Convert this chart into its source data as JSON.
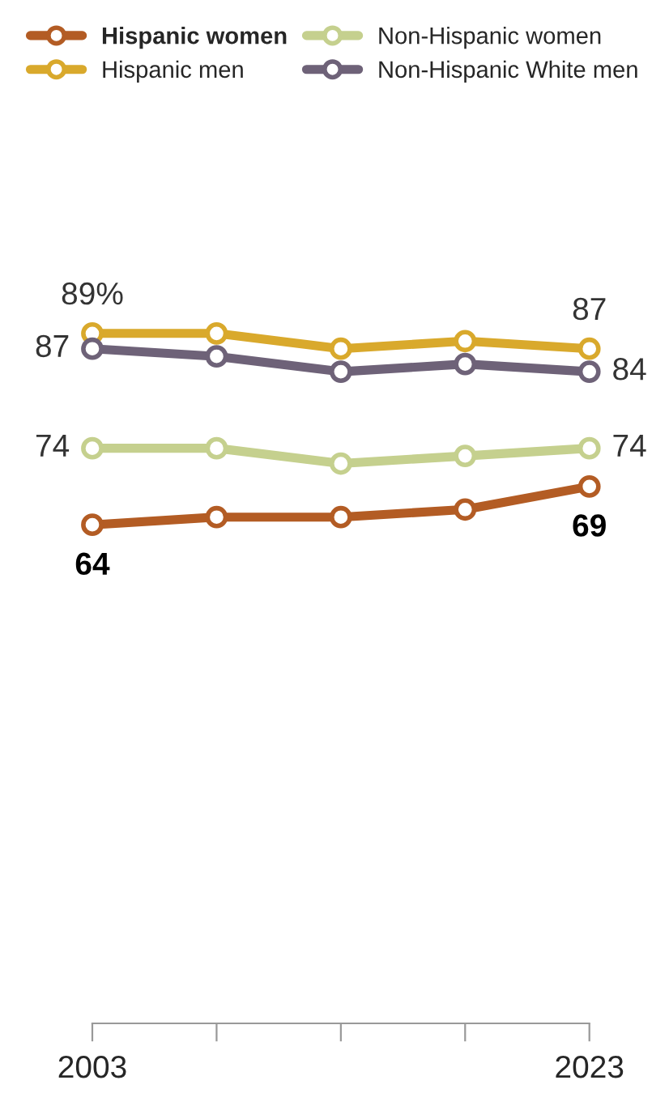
{
  "chart_data": {
    "type": "line",
    "x": [
      2003,
      2008,
      2013,
      2018,
      2023
    ],
    "series": [
      {
        "name": "Hispanic women",
        "color": "#b35c24",
        "values": [
          64,
          65,
          65,
          66,
          69
        ],
        "value_labels": [
          "64",
          null,
          null,
          null,
          "69"
        ]
      },
      {
        "name": "Non-Hispanic women",
        "color": "#c5d08e",
        "values": [
          74,
          74,
          72,
          73,
          74
        ],
        "value_labels": [
          "74",
          null,
          null,
          null,
          "74"
        ]
      },
      {
        "name": "Hispanic men",
        "color": "#d9a92c",
        "values": [
          89,
          89,
          87,
          88,
          87
        ],
        "value_labels": [
          "89%",
          null,
          null,
          null,
          "87"
        ]
      },
      {
        "name": "Non-Hispanic White men",
        "color": "#6e6278",
        "values": [
          87,
          86,
          84,
          85,
          84
        ],
        "value_labels": [
          "87",
          null,
          null,
          null,
          "84"
        ]
      }
    ],
    "xlim": [
      2003,
      2023
    ],
    "xticks": [
      2003,
      {
        "value": 2008,
        "label": null
      },
      {
        "value": 2013,
        "label": null
      },
      {
        "value": 2018,
        "label": null
      },
      2023
    ],
    "tick_labels": "x",
    "grid": false,
    "legend": "top",
    "marker": "circle",
    "line_style": "solid"
  }
}
